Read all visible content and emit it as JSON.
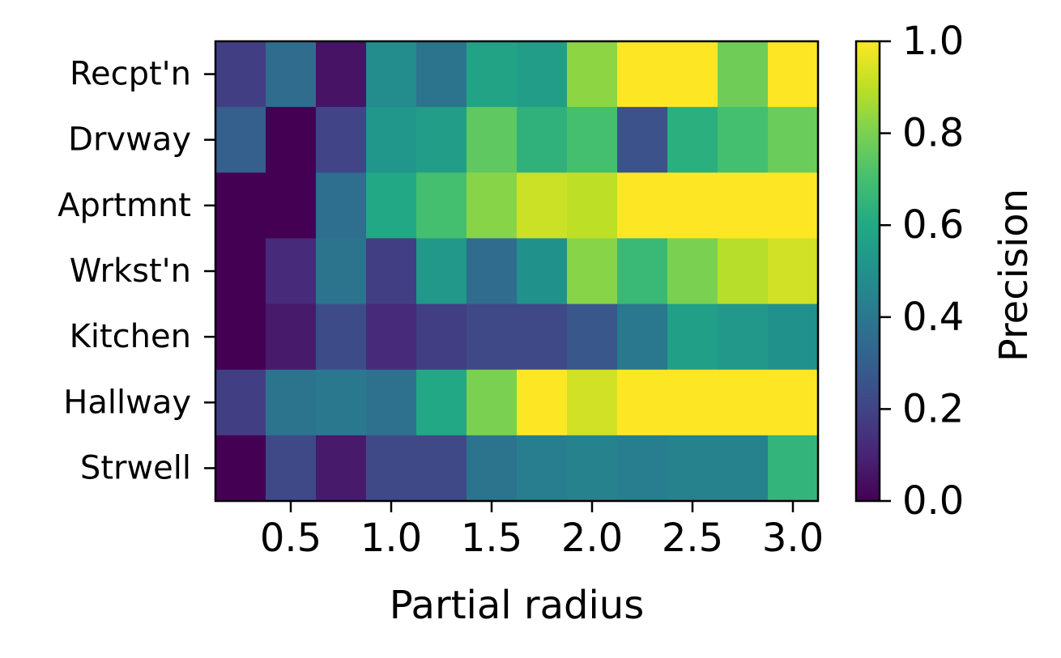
{
  "chart_data": {
    "type": "heatmap",
    "xlabel": "Partial radius",
    "ylabel": "",
    "x_ticks": [
      "0.5",
      "1.0",
      "1.5",
      "2.0",
      "2.5",
      "3.0"
    ],
    "x_tick_values": [
      0.5,
      1.0,
      1.5,
      2.0,
      2.5,
      3.0
    ],
    "x": [
      0.25,
      0.5,
      0.75,
      1.0,
      1.25,
      1.5,
      1.75,
      2.0,
      2.25,
      2.5,
      2.75,
      3.0
    ],
    "xlim": [
      0.125,
      3.125
    ],
    "rows": [
      "Recpt'n",
      "Drvway",
      "Aprtmnt",
      "Wrkst'n",
      "Kitchen",
      "Hallway",
      "Strwell"
    ],
    "values": [
      [
        0.18,
        0.35,
        0.05,
        0.48,
        0.38,
        0.58,
        0.55,
        0.83,
        1.0,
        1.0,
        0.78,
        1.0
      ],
      [
        0.3,
        0.0,
        0.2,
        0.52,
        0.55,
        0.75,
        0.64,
        0.7,
        0.25,
        0.63,
        0.7,
        0.77
      ],
      [
        0.0,
        0.0,
        0.36,
        0.6,
        0.7,
        0.82,
        0.92,
        0.9,
        1.0,
        1.0,
        1.0,
        1.0
      ],
      [
        0.0,
        0.12,
        0.38,
        0.18,
        0.53,
        0.35,
        0.5,
        0.82,
        0.67,
        0.8,
        0.89,
        0.93
      ],
      [
        0.0,
        0.07,
        0.23,
        0.12,
        0.18,
        0.22,
        0.22,
        0.27,
        0.4,
        0.56,
        0.53,
        0.5
      ],
      [
        0.18,
        0.38,
        0.4,
        0.37,
        0.6,
        0.8,
        1.0,
        0.93,
        1.0,
        1.0,
        1.0,
        1.0
      ],
      [
        0.0,
        0.22,
        0.07,
        0.22,
        0.22,
        0.38,
        0.42,
        0.44,
        0.42,
        0.44,
        0.44,
        0.65
      ]
    ],
    "colormap": "viridis",
    "colorbar": {
      "label": "Precision",
      "range": [
        0.0,
        1.0
      ],
      "ticks": [
        "0.0",
        "0.2",
        "0.4",
        "0.6",
        "0.8",
        "1.0"
      ],
      "tick_values": [
        0.0,
        0.2,
        0.4,
        0.6,
        0.8,
        1.0
      ]
    }
  }
}
